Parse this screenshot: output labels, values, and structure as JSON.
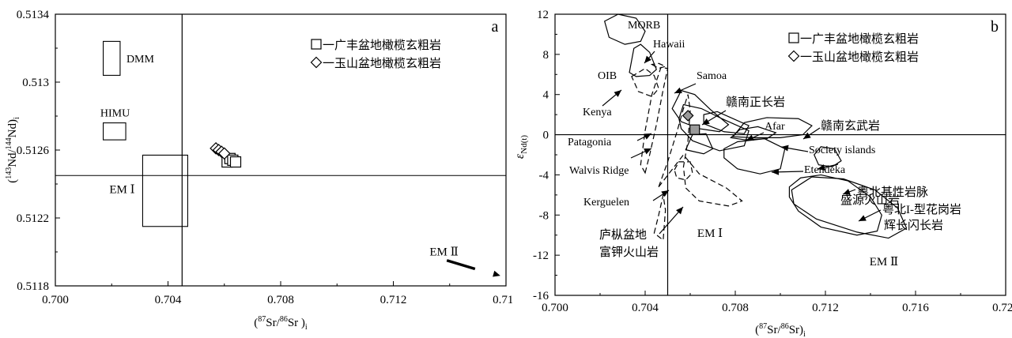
{
  "chart_data": [
    {
      "panel": "a",
      "type": "scatter",
      "panel_label": "a",
      "xlabel_parts": [
        "(",
        "87",
        "Sr/",
        "86",
        "Sr )",
        "i"
      ],
      "ylabel_parts": [
        "(",
        "143",
        "Nd/",
        "144",
        "Nd)",
        "i"
      ],
      "xlim": [
        0.7,
        0.716
      ],
      "ylim": [
        0.5118,
        0.5134
      ],
      "xticks": [
        0.7,
        0.704,
        0.708,
        0.712,
        0.716
      ],
      "xtick_labels": [
        "0.700",
        "0.704",
        "0.708",
        "0.712",
        "0.716"
      ],
      "yticks": [
        0.5118,
        0.5122,
        0.5126,
        0.513,
        0.5134
      ],
      "ytick_labels": [
        "0.5118",
        "0.5122",
        "0.5126",
        "0.513",
        "0.5134"
      ],
      "grid": false,
      "legend_position": "top-right",
      "reference_lines": {
        "x": 0.7045,
        "y": 0.51245
      },
      "fields": [
        {
          "label": "DMM",
          "x": [
            0.7017,
            0.7023
          ],
          "y": [
            0.51304,
            0.51324
          ]
        },
        {
          "label": "HIMU",
          "x": [
            0.7017,
            0.7025
          ],
          "y": [
            0.51266,
            0.51276
          ]
        },
        {
          "label": "EM Ⅰ",
          "x": [
            0.7031,
            0.7047
          ],
          "y": [
            0.51215,
            0.51257
          ]
        }
      ],
      "em2_label": "EM Ⅱ",
      "series": [
        {
          "name": "一广丰盆地橄榄玄粗岩",
          "marker": "square",
          "points": [
            [
              0.7061,
              0.51253
            ],
            [
              0.7062,
              0.51255
            ],
            [
              0.7063,
              0.51254
            ],
            [
              0.7064,
              0.51253
            ]
          ]
        },
        {
          "name": "一玉山盆地橄榄玄粗岩",
          "marker": "diamond",
          "points": [
            [
              0.7057,
              0.51261
            ],
            [
              0.7058,
              0.5126
            ],
            [
              0.7059,
              0.51259
            ],
            [
              0.706,
              0.51258
            ]
          ]
        }
      ]
    },
    {
      "panel": "b",
      "type": "scatter",
      "panel_label": "b",
      "xlabel_parts": [
        "(",
        "87",
        "Sr/",
        "86",
        "Sr)",
        "i"
      ],
      "ylabel_parts": [
        "ε",
        "Nd(t)"
      ],
      "xlim": [
        0.7,
        0.72
      ],
      "ylim": [
        -16,
        12
      ],
      "xticks": [
        0.7,
        0.704,
        0.708,
        0.712,
        0.716,
        0.72
      ],
      "xtick_labels": [
        "0.700",
        "0.704",
        "0.708",
        "0.712",
        "0.716",
        "0.720"
      ],
      "yticks": [
        -16,
        -12,
        -8,
        -4,
        0,
        4,
        8,
        12
      ],
      "ytick_labels": [
        "-16",
        "-12",
        "-8",
        "-4",
        "0",
        "4",
        "8",
        "12"
      ],
      "grid": false,
      "legend_position": "top-right",
      "reference_lines": {
        "x": 0.705,
        "y": 0
      },
      "series": [
        {
          "name": "一广丰盆地橄榄玄粗岩",
          "marker": "square",
          "points": [
            [
              0.7062,
              0.5
            ]
          ]
        },
        {
          "name": "一玉山盆地橄榄玄粗岩",
          "marker": "diamond",
          "points": [
            [
              0.7059,
              1.9
            ]
          ]
        }
      ],
      "field_labels": [
        "MORB",
        "Hawaii",
        "Samoa",
        "OIB",
        "赣南正长岩",
        "Afar",
        "赣南玄武岩",
        "Kenya",
        "Society islands",
        "Patagonia",
        "Etendeka",
        "盛源火山岩",
        "Walvis Ridge",
        "粤北基性岩脉",
        "Kerguelen",
        "粤北I-型花岗岩",
        "辉长闪长岩",
        "庐枞盆地",
        "富钾火山岩",
        "EM Ⅰ",
        "EM Ⅱ"
      ]
    }
  ]
}
